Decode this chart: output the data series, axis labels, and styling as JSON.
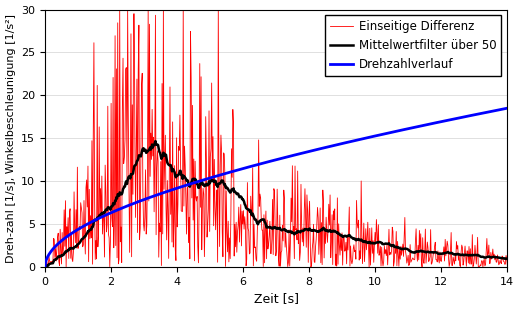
{
  "title": "",
  "xlabel": "Zeit [s]",
  "ylabel": "Dreh­zahl [1/s], Winkelbeschleunigung [1/s²]",
  "xlim": [
    0,
    14
  ],
  "ylim": [
    0,
    30
  ],
  "xticks": [
    0,
    2,
    4,
    6,
    8,
    10,
    12,
    14
  ],
  "yticks": [
    0,
    5,
    10,
    15,
    20,
    25,
    30
  ],
  "legend": [
    "Drehzahlverlauf",
    "Einseitige Differenz",
    "Mittelwertfilter über 50"
  ],
  "line_colors": [
    "#0000ff",
    "#ff0000",
    "#000000"
  ],
  "blue_lw": 2.0,
  "red_lw": 0.6,
  "black_lw": 1.8,
  "figsize": [
    5.2,
    3.11
  ],
  "dpi": 100,
  "seed": 42,
  "n_points": 700,
  "t_max": 14.0,
  "moving_avg_window": 50,
  "background_color": "#ffffff",
  "grid_color": "#d3d3d3",
  "legend_fontsize": 8.5,
  "tick_fontsize": 8,
  "label_fontsize": 9
}
